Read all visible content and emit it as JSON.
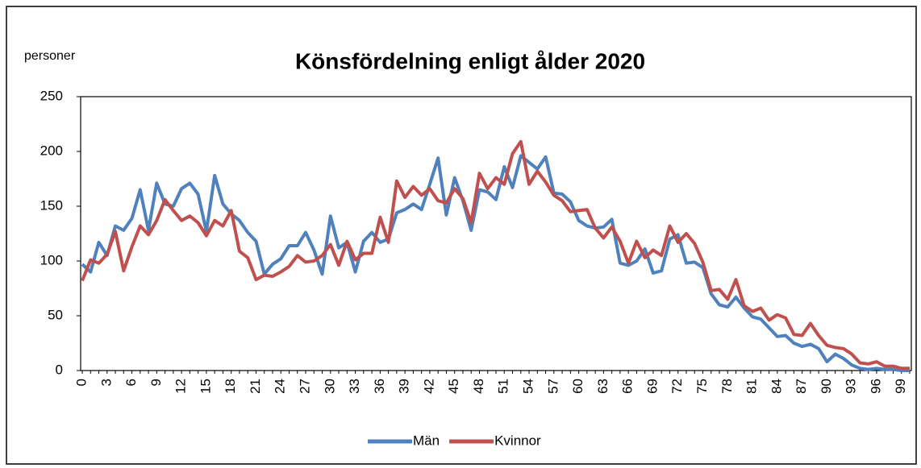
{
  "chart_data": {
    "type": "line",
    "title": "Könsfördelning enligt ålder 2020",
    "y_label": "personer",
    "categories": [
      "0",
      null,
      null,
      "3",
      null,
      null,
      "6",
      null,
      null,
      "9",
      null,
      null,
      "12",
      null,
      null,
      "15",
      null,
      null,
      "18",
      null,
      null,
      "21",
      null,
      null,
      "24",
      null,
      null,
      "27",
      null,
      null,
      "30",
      null,
      null,
      "33",
      null,
      null,
      "36",
      null,
      null,
      "39",
      null,
      null,
      "42",
      null,
      null,
      "45",
      null,
      null,
      "48",
      null,
      null,
      "51",
      null,
      null,
      "54",
      null,
      null,
      "57",
      null,
      null,
      "60",
      null,
      null,
      "63",
      null,
      null,
      "66",
      null,
      null,
      "69",
      null,
      null,
      "72",
      null,
      null,
      "75",
      null,
      null,
      "78",
      null,
      null,
      "81",
      null,
      null,
      "84",
      null,
      null,
      "87",
      null,
      null,
      "90",
      null,
      null,
      "93",
      null,
      null,
      "96",
      null,
      null,
      "99",
      null
    ],
    "series": [
      {
        "name": "Män",
        "color": "#4f81bd",
        "values": [
          97,
          90,
          117,
          105,
          132,
          128,
          139,
          165,
          128,
          171,
          152,
          150,
          166,
          171,
          161,
          127,
          178,
          152,
          143,
          137,
          126,
          118,
          88,
          97,
          102,
          114,
          114,
          126,
          110,
          88,
          141,
          112,
          117,
          90,
          118,
          126,
          117,
          120,
          144,
          147,
          152,
          147,
          170,
          194,
          142,
          176,
          155,
          128,
          165,
          163,
          156,
          186,
          167,
          196,
          190,
          184,
          195,
          162,
          161,
          154,
          137,
          132,
          130,
          131,
          138,
          98,
          96,
          100,
          111,
          89,
          91,
          120,
          124,
          98,
          99,
          94,
          70,
          60,
          58,
          67,
          57,
          49,
          47,
          39,
          31,
          32,
          25,
          22,
          24,
          20,
          8,
          15,
          11,
          5,
          2,
          1,
          2,
          1,
          1,
          0,
          0
        ]
      },
      {
        "name": "Kvinnor",
        "color": "#c0504d",
        "values": [
          82,
          101,
          98,
          106,
          127,
          91,
          113,
          132,
          124,
          137,
          156,
          146,
          137,
          141,
          135,
          123,
          137,
          132,
          146,
          109,
          103,
          83,
          87,
          86,
          90,
          95,
          105,
          99,
          100,
          105,
          115,
          96,
          118,
          101,
          107,
          107,
          140,
          117,
          173,
          158,
          168,
          160,
          166,
          155,
          153,
          166,
          157,
          135,
          180,
          166,
          176,
          170,
          198,
          209,
          170,
          182,
          172,
          160,
          155,
          145,
          146,
          147,
          130,
          121,
          131,
          118,
          98,
          118,
          103,
          110,
          105,
          132,
          117,
          125,
          116,
          99,
          73,
          74,
          65,
          83,
          59,
          54,
          57,
          46,
          51,
          48,
          33,
          32,
          43,
          32,
          23,
          21,
          20,
          15,
          7,
          6,
          8,
          4,
          4,
          2,
          2
        ]
      }
    ],
    "ylim": [
      0,
      250
    ],
    "yticks": [
      0,
      50,
      100,
      150,
      200,
      250
    ],
    "grid": false,
    "legend": "bottom"
  }
}
